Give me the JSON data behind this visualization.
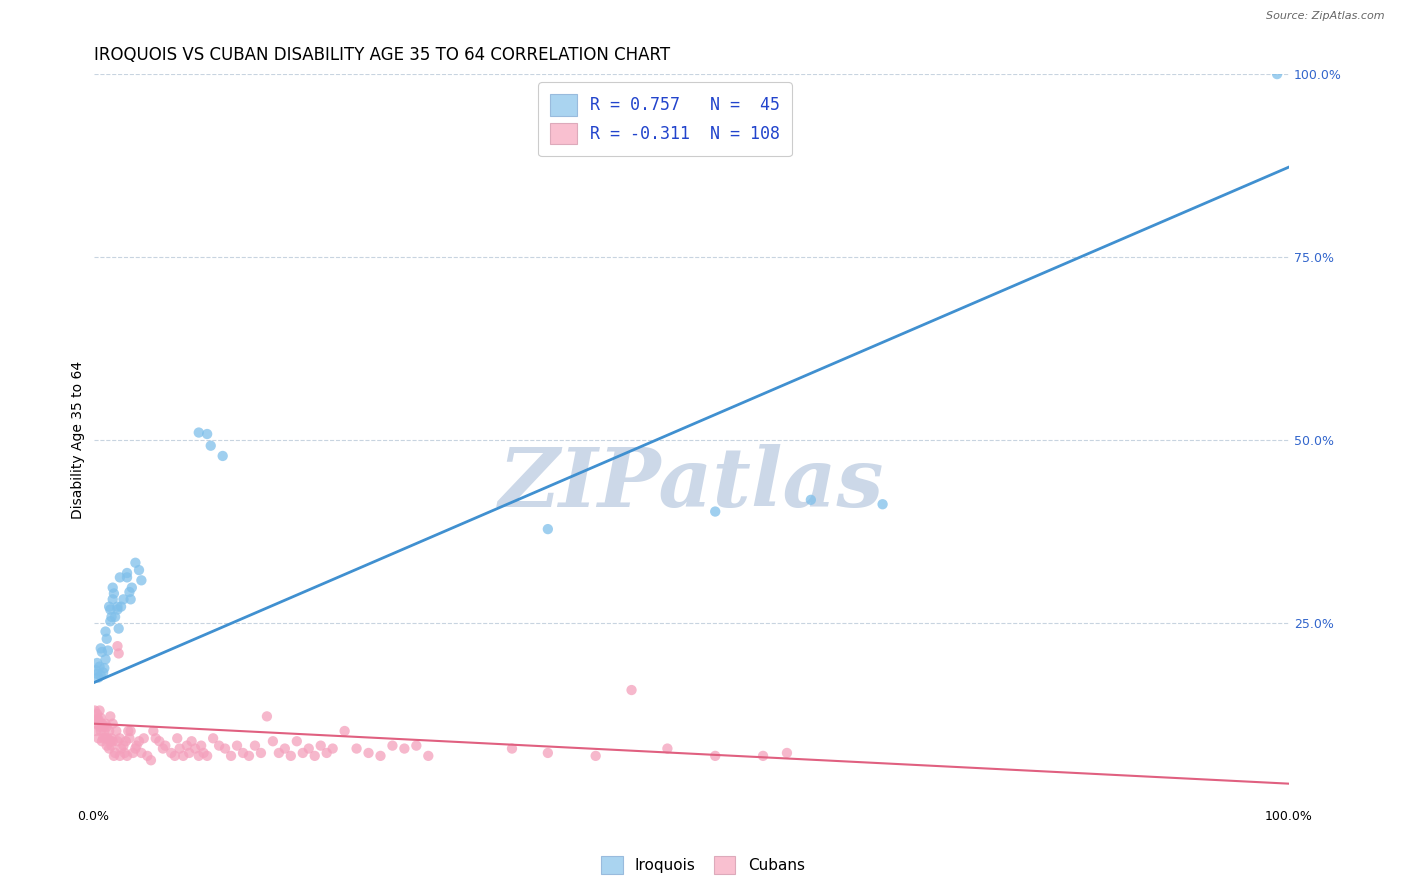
{
  "title": "IROQUOIS VS CUBAN DISABILITY AGE 35 TO 64 CORRELATION CHART",
  "source": "Source: ZipAtlas.com",
  "ylabel": "Disability Age 35 to 64",
  "right_yticks": [
    "100.0%",
    "75.0%",
    "50.0%",
    "25.0%"
  ],
  "right_ytick_vals": [
    1.0,
    0.75,
    0.5,
    0.25
  ],
  "iroquois_R": 0.757,
  "iroquois_N": 45,
  "cubans_R": -0.311,
  "cubans_N": 108,
  "iroquois_color": "#7fbfea",
  "cubans_color": "#f4a0bc",
  "iroquois_line_color": "#4090d0",
  "cubans_line_color": "#e06080",
  "iroquois_legend_color": "#aad4f0",
  "cubans_legend_color": "#f9c0d0",
  "watermark": "ZIPatlas",
  "watermark_color": "#ccd8e8",
  "iroquois_line_slope": 0.705,
  "iroquois_line_intercept": 0.168,
  "cubans_line_slope": -0.082,
  "cubans_line_intercept": 0.112,
  "iroquois_points": [
    [
      0.002,
      0.185
    ],
    [
      0.003,
      0.195
    ],
    [
      0.003,
      0.18
    ],
    [
      0.004,
      0.175
    ],
    [
      0.005,
      0.19
    ],
    [
      0.006,
      0.178
    ],
    [
      0.006,
      0.215
    ],
    [
      0.007,
      0.21
    ],
    [
      0.008,
      0.182
    ],
    [
      0.009,
      0.188
    ],
    [
      0.01,
      0.2
    ],
    [
      0.01,
      0.238
    ],
    [
      0.011,
      0.228
    ],
    [
      0.012,
      0.212
    ],
    [
      0.013,
      0.272
    ],
    [
      0.014,
      0.268
    ],
    [
      0.014,
      0.252
    ],
    [
      0.015,
      0.258
    ],
    [
      0.016,
      0.298
    ],
    [
      0.016,
      0.282
    ],
    [
      0.017,
      0.29
    ],
    [
      0.018,
      0.258
    ],
    [
      0.02,
      0.272
    ],
    [
      0.02,
      0.268
    ],
    [
      0.021,
      0.242
    ],
    [
      0.022,
      0.312
    ],
    [
      0.023,
      0.272
    ],
    [
      0.025,
      0.282
    ],
    [
      0.028,
      0.312
    ],
    [
      0.028,
      0.318
    ],
    [
      0.03,
      0.292
    ],
    [
      0.031,
      0.282
    ],
    [
      0.032,
      0.298
    ],
    [
      0.035,
      0.332
    ],
    [
      0.038,
      0.322
    ],
    [
      0.04,
      0.308
    ],
    [
      0.088,
      0.51
    ],
    [
      0.095,
      0.508
    ],
    [
      0.098,
      0.492
    ],
    [
      0.108,
      0.478
    ],
    [
      0.38,
      0.378
    ],
    [
      0.52,
      0.402
    ],
    [
      0.6,
      0.418
    ],
    [
      0.66,
      0.412
    ],
    [
      0.99,
      1.0
    ]
  ],
  "cubans_points": [
    [
      0.001,
      0.13
    ],
    [
      0.002,
      0.112
    ],
    [
      0.002,
      0.102
    ],
    [
      0.003,
      0.125
    ],
    [
      0.003,
      0.118
    ],
    [
      0.004,
      0.092
    ],
    [
      0.004,
      0.118
    ],
    [
      0.005,
      0.13
    ],
    [
      0.005,
      0.108
    ],
    [
      0.006,
      0.12
    ],
    [
      0.006,
      0.102
    ],
    [
      0.007,
      0.088
    ],
    [
      0.007,
      0.112
    ],
    [
      0.008,
      0.092
    ],
    [
      0.008,
      0.108
    ],
    [
      0.009,
      0.102
    ],
    [
      0.01,
      0.112
    ],
    [
      0.01,
      0.092
    ],
    [
      0.011,
      0.108
    ],
    [
      0.011,
      0.082
    ],
    [
      0.012,
      0.092
    ],
    [
      0.013,
      0.102
    ],
    [
      0.013,
      0.078
    ],
    [
      0.014,
      0.088
    ],
    [
      0.014,
      0.122
    ],
    [
      0.015,
      0.092
    ],
    [
      0.015,
      0.082
    ],
    [
      0.016,
      0.088
    ],
    [
      0.016,
      0.112
    ],
    [
      0.017,
      0.068
    ],
    [
      0.018,
      0.072
    ],
    [
      0.019,
      0.102
    ],
    [
      0.02,
      0.088
    ],
    [
      0.02,
      0.218
    ],
    [
      0.021,
      0.208
    ],
    [
      0.022,
      0.068
    ],
    [
      0.022,
      0.092
    ],
    [
      0.023,
      0.078
    ],
    [
      0.025,
      0.082
    ],
    [
      0.026,
      0.072
    ],
    [
      0.027,
      0.088
    ],
    [
      0.028,
      0.068
    ],
    [
      0.029,
      0.102
    ],
    [
      0.03,
      0.092
    ],
    [
      0.031,
      0.102
    ],
    [
      0.033,
      0.072
    ],
    [
      0.035,
      0.078
    ],
    [
      0.036,
      0.082
    ],
    [
      0.038,
      0.088
    ],
    [
      0.04,
      0.072
    ],
    [
      0.042,
      0.092
    ],
    [
      0.045,
      0.068
    ],
    [
      0.048,
      0.062
    ],
    [
      0.05,
      0.102
    ],
    [
      0.052,
      0.092
    ],
    [
      0.055,
      0.088
    ],
    [
      0.058,
      0.078
    ],
    [
      0.06,
      0.082
    ],
    [
      0.065,
      0.072
    ],
    [
      0.068,
      0.068
    ],
    [
      0.07,
      0.092
    ],
    [
      0.072,
      0.078
    ],
    [
      0.075,
      0.068
    ],
    [
      0.078,
      0.082
    ],
    [
      0.08,
      0.072
    ],
    [
      0.082,
      0.088
    ],
    [
      0.085,
      0.078
    ],
    [
      0.088,
      0.068
    ],
    [
      0.09,
      0.082
    ],
    [
      0.092,
      0.072
    ],
    [
      0.095,
      0.068
    ],
    [
      0.1,
      0.092
    ],
    [
      0.105,
      0.082
    ],
    [
      0.11,
      0.078
    ],
    [
      0.115,
      0.068
    ],
    [
      0.12,
      0.082
    ],
    [
      0.125,
      0.072
    ],
    [
      0.13,
      0.068
    ],
    [
      0.135,
      0.082
    ],
    [
      0.14,
      0.072
    ],
    [
      0.145,
      0.122
    ],
    [
      0.15,
      0.088
    ],
    [
      0.155,
      0.072
    ],
    [
      0.16,
      0.078
    ],
    [
      0.165,
      0.068
    ],
    [
      0.17,
      0.088
    ],
    [
      0.175,
      0.072
    ],
    [
      0.18,
      0.078
    ],
    [
      0.185,
      0.068
    ],
    [
      0.19,
      0.082
    ],
    [
      0.195,
      0.072
    ],
    [
      0.2,
      0.078
    ],
    [
      0.21,
      0.102
    ],
    [
      0.22,
      0.078
    ],
    [
      0.23,
      0.072
    ],
    [
      0.24,
      0.068
    ],
    [
      0.25,
      0.082
    ],
    [
      0.26,
      0.078
    ],
    [
      0.27,
      0.082
    ],
    [
      0.28,
      0.068
    ],
    [
      0.35,
      0.078
    ],
    [
      0.38,
      0.072
    ],
    [
      0.42,
      0.068
    ],
    [
      0.45,
      0.158
    ],
    [
      0.48,
      0.078
    ],
    [
      0.52,
      0.068
    ],
    [
      0.56,
      0.068
    ],
    [
      0.58,
      0.072
    ]
  ],
  "xlim": [
    0.0,
    1.0
  ],
  "ylim": [
    0.0,
    1.0
  ],
  "background_color": "#ffffff",
  "grid_color": "#c8d4e0",
  "title_fontsize": 12,
  "axis_label_fontsize": 10,
  "tick_fontsize": 9,
  "legend_text_color": "#2244cc"
}
